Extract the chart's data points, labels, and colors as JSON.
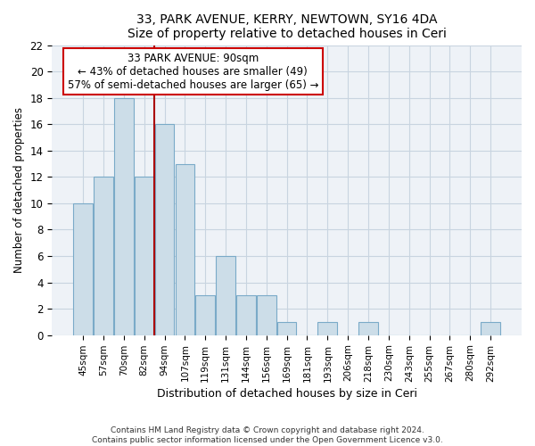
{
  "title": "33, PARK AVENUE, KERRY, NEWTOWN, SY16 4DA",
  "subtitle": "Size of property relative to detached houses in Ceri",
  "xlabel": "Distribution of detached houses by size in Ceri",
  "ylabel": "Number of detached properties",
  "footer_line1": "Contains HM Land Registry data © Crown copyright and database right 2024.",
  "footer_line2": "Contains public sector information licensed under the Open Government Licence v3.0.",
  "bar_labels": [
    "45sqm",
    "57sqm",
    "70sqm",
    "82sqm",
    "94sqm",
    "107sqm",
    "119sqm",
    "131sqm",
    "144sqm",
    "156sqm",
    "169sqm",
    "181sqm",
    "193sqm",
    "206sqm",
    "218sqm",
    "230sqm",
    "243sqm",
    "255sqm",
    "267sqm",
    "280sqm",
    "292sqm"
  ],
  "bar_values": [
    10,
    12,
    18,
    12,
    16,
    13,
    3,
    6,
    3,
    3,
    1,
    0,
    1,
    0,
    1,
    0,
    0,
    0,
    0,
    0,
    1
  ],
  "bar_color": "#ccdde8",
  "bar_edge_color": "#7aaac8",
  "highlight_line_color": "#aa0000",
  "annotation_title": "33 PARK AVENUE: 90sqm",
  "annotation_line1": "← 43% of detached houses are smaller (49)",
  "annotation_line2": "57% of semi-detached houses are larger (65) →",
  "annotation_box_color": "#ffffff",
  "annotation_box_edge": "#cc0000",
  "bg_color": "#eef2f7",
  "grid_color": "#c8d4e0",
  "ylim": [
    0,
    22
  ],
  "yticks": [
    0,
    2,
    4,
    6,
    8,
    10,
    12,
    14,
    16,
    18,
    20,
    22
  ]
}
